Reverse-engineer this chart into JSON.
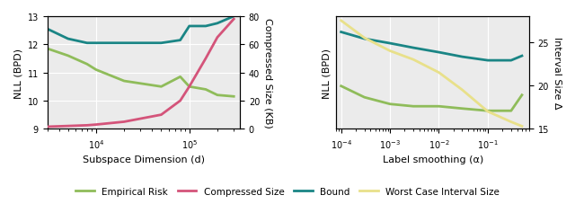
{
  "left": {
    "x": [
      3000,
      5000,
      8000,
      10000,
      20000,
      50000,
      80000,
      100000,
      150000,
      200000,
      300000
    ],
    "empirical_risk": [
      11.85,
      11.6,
      11.3,
      11.1,
      10.7,
      10.5,
      10.85,
      10.5,
      10.4,
      10.2,
      10.15
    ],
    "compressed_size": [
      1.5,
      2.0,
      2.5,
      3.0,
      5.0,
      10.0,
      20.0,
      30.0,
      50.0,
      65.0,
      78.0
    ],
    "bound": [
      12.55,
      12.2,
      12.05,
      12.05,
      12.05,
      12.05,
      12.15,
      12.65,
      12.65,
      12.75,
      13.0
    ],
    "xlabel": "Subspace Dimension (d)",
    "ylabel_left": "NLL (BPD)",
    "ylabel_right": "Compressed Size (KB)",
    "ylim_left": [
      9,
      13
    ],
    "ylim_right": [
      0,
      80
    ],
    "yticks_left": [
      9,
      10,
      11,
      12,
      13
    ],
    "yticks_right": [
      0,
      20,
      40,
      60,
      80
    ],
    "xlim": [
      3000,
      350000
    ]
  },
  "right": {
    "x": [
      0.0001,
      0.0003,
      0.001,
      0.003,
      0.01,
      0.03,
      0.1,
      0.3,
      0.5
    ],
    "empirical_risk": [
      11.65,
      11.4,
      11.25,
      11.2,
      11.2,
      11.15,
      11.1,
      11.1,
      11.45
    ],
    "interval_size": [
      27.5,
      25.5,
      24.0,
      23.0,
      21.5,
      19.5,
      17.0,
      15.8,
      15.3
    ],
    "bound": [
      12.85,
      12.7,
      12.6,
      12.5,
      12.4,
      12.3,
      12.22,
      12.22,
      12.32
    ],
    "xlabel": "Label smoothing (α)",
    "ylabel_left": "NLL (BPD)",
    "ylabel_right": "Interval Size Δ",
    "ylim_left": [
      10.7,
      13.2
    ],
    "ylim_right": [
      15,
      28
    ],
    "yticks_left": [],
    "yticks_right": [
      15,
      20,
      25
    ],
    "xlim": [
      8e-05,
      0.7
    ]
  },
  "colors": {
    "empirical_risk": "#8fbc5a",
    "compressed_size": "#d4547a",
    "bound": "#1a8585",
    "interval_size": "#e8e08a"
  },
  "legend_labels": [
    "Empirical Risk",
    "Compressed Size",
    "Bound",
    "Worst Case Interval Size"
  ],
  "linewidth": 2.0,
  "background": "#ebebeb",
  "fig_facecolor": "#ffffff"
}
